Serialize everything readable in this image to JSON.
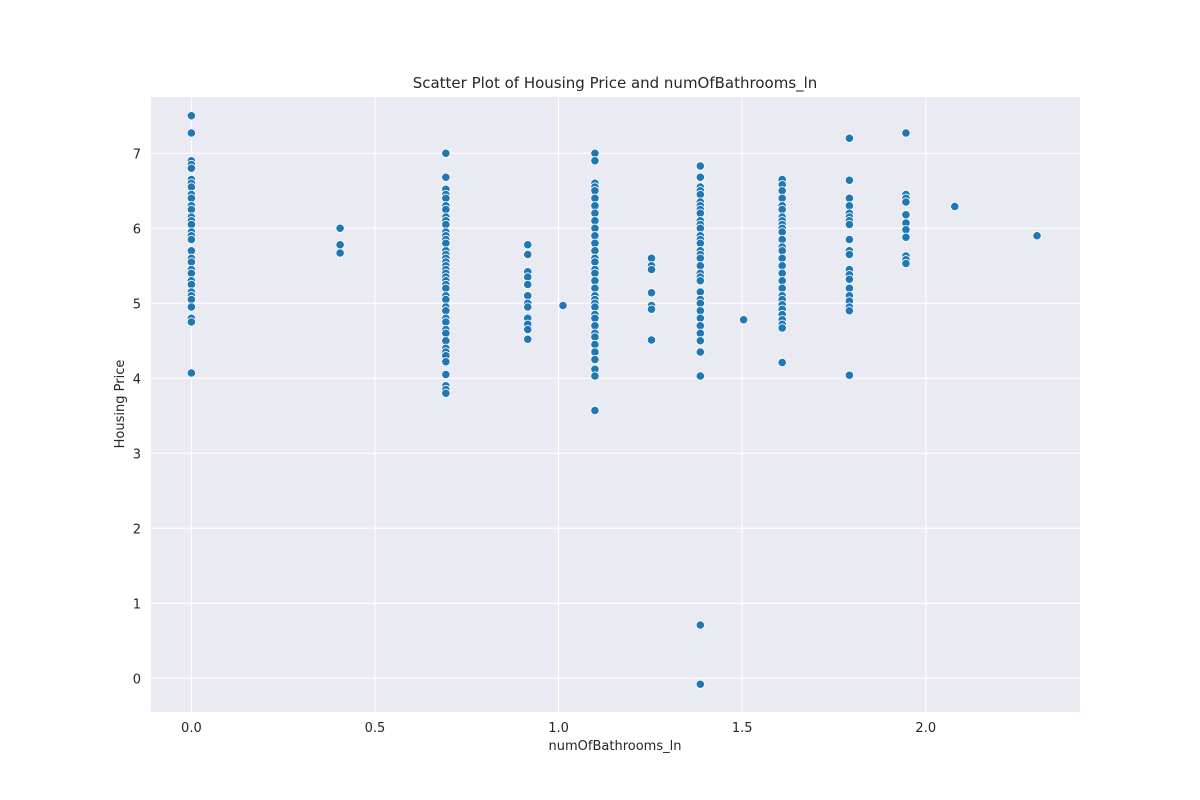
{
  "chart_data": {
    "type": "scatter",
    "title": "Scatter Plot of Housing Price and numOfBathrooms_ln",
    "xlabel": "numOfBathrooms_ln",
    "ylabel": "Housing Price",
    "xlim": [
      -0.11,
      2.42
    ],
    "ylim": [
      -0.45,
      7.75
    ],
    "x_ticks": [
      0.0,
      0.5,
      1.0,
      1.5,
      2.0
    ],
    "x_tick_labels": [
      "0.0",
      "0.5",
      "1.0",
      "1.5",
      "2.0"
    ],
    "y_ticks": [
      0,
      1,
      2,
      3,
      4,
      5,
      6,
      7
    ],
    "y_tick_labels": [
      "0",
      "1",
      "2",
      "3",
      "4",
      "5",
      "6",
      "7"
    ],
    "grid": true,
    "style": {
      "background": "#eaeaf2",
      "grid_color": "#ffffff",
      "point_color": "#1f77b4",
      "point_edge": "#ffffff"
    },
    "series": [
      {
        "points": [
          [
            0.0,
            7.5
          ],
          [
            0.0,
            7.27
          ],
          [
            0.0,
            6.9
          ],
          [
            0.0,
            6.85
          ],
          [
            0.0,
            6.8
          ],
          [
            0.0,
            6.65
          ],
          [
            0.0,
            6.6
          ],
          [
            0.0,
            6.55
          ],
          [
            0.0,
            6.45
          ],
          [
            0.0,
            6.4
          ],
          [
            0.0,
            6.3
          ],
          [
            0.0,
            6.25
          ],
          [
            0.0,
            6.15
          ],
          [
            0.0,
            6.1
          ],
          [
            0.0,
            6.05
          ],
          [
            0.0,
            5.95
          ],
          [
            0.0,
            5.9
          ],
          [
            0.0,
            5.85
          ],
          [
            0.0,
            5.7
          ],
          [
            0.0,
            5.6
          ],
          [
            0.0,
            5.55
          ],
          [
            0.0,
            5.45
          ],
          [
            0.0,
            5.4
          ],
          [
            0.0,
            5.3
          ],
          [
            0.0,
            5.25
          ],
          [
            0.0,
            5.15
          ],
          [
            0.0,
            5.1
          ],
          [
            0.0,
            5.05
          ],
          [
            0.0,
            4.95
          ],
          [
            0.0,
            4.8
          ],
          [
            0.0,
            4.75
          ],
          [
            0.0,
            4.07
          ],
          [
            0.405,
            6.0
          ],
          [
            0.405,
            5.78
          ],
          [
            0.405,
            5.67
          ],
          [
            0.693,
            7.0
          ],
          [
            0.693,
            6.68
          ],
          [
            0.693,
            6.52
          ],
          [
            0.693,
            6.45
          ],
          [
            0.693,
            6.4
          ],
          [
            0.693,
            6.3
          ],
          [
            0.693,
            6.25
          ],
          [
            0.693,
            6.15
          ],
          [
            0.693,
            6.1
          ],
          [
            0.693,
            6.05
          ],
          [
            0.693,
            5.95
          ],
          [
            0.693,
            5.9
          ],
          [
            0.693,
            5.85
          ],
          [
            0.693,
            5.8
          ],
          [
            0.693,
            5.7
          ],
          [
            0.693,
            5.65
          ],
          [
            0.693,
            5.6
          ],
          [
            0.693,
            5.55
          ],
          [
            0.693,
            5.5
          ],
          [
            0.693,
            5.45
          ],
          [
            0.693,
            5.4
          ],
          [
            0.693,
            5.35
          ],
          [
            0.693,
            5.3
          ],
          [
            0.693,
            5.25
          ],
          [
            0.693,
            5.2
          ],
          [
            0.693,
            5.1
          ],
          [
            0.693,
            5.05
          ],
          [
            0.693,
            4.95
          ],
          [
            0.693,
            4.9
          ],
          [
            0.693,
            4.8
          ],
          [
            0.693,
            4.75
          ],
          [
            0.693,
            4.65
          ],
          [
            0.693,
            4.6
          ],
          [
            0.693,
            4.5
          ],
          [
            0.693,
            4.4
          ],
          [
            0.693,
            4.35
          ],
          [
            0.693,
            4.3
          ],
          [
            0.693,
            4.22
          ],
          [
            0.693,
            4.05
          ],
          [
            0.693,
            3.9
          ],
          [
            0.693,
            3.85
          ],
          [
            0.693,
            3.8
          ],
          [
            0.916,
            5.78
          ],
          [
            0.916,
            5.65
          ],
          [
            0.916,
            5.42
          ],
          [
            0.916,
            5.35
          ],
          [
            0.916,
            5.25
          ],
          [
            0.916,
            5.1
          ],
          [
            0.916,
            5.0
          ],
          [
            0.916,
            4.95
          ],
          [
            0.916,
            4.8
          ],
          [
            0.916,
            4.72
          ],
          [
            0.916,
            4.65
          ],
          [
            0.916,
            4.52
          ],
          [
            1.012,
            4.97
          ],
          [
            1.099,
            7.0
          ],
          [
            1.099,
            6.9
          ],
          [
            1.099,
            6.6
          ],
          [
            1.099,
            6.55
          ],
          [
            1.099,
            6.5
          ],
          [
            1.099,
            6.4
          ],
          [
            1.099,
            6.3
          ],
          [
            1.099,
            6.2
          ],
          [
            1.099,
            6.1
          ],
          [
            1.099,
            6.0
          ],
          [
            1.099,
            5.9
          ],
          [
            1.099,
            5.8
          ],
          [
            1.099,
            5.7
          ],
          [
            1.099,
            5.6
          ],
          [
            1.099,
            5.55
          ],
          [
            1.099,
            5.45
          ],
          [
            1.099,
            5.4
          ],
          [
            1.099,
            5.3
          ],
          [
            1.099,
            5.2
          ],
          [
            1.099,
            5.1
          ],
          [
            1.099,
            5.05
          ],
          [
            1.099,
            5.0
          ],
          [
            1.099,
            4.95
          ],
          [
            1.099,
            4.85
          ],
          [
            1.099,
            4.8
          ],
          [
            1.099,
            4.7
          ],
          [
            1.099,
            4.6
          ],
          [
            1.099,
            4.55
          ],
          [
            1.099,
            4.45
          ],
          [
            1.099,
            4.35
          ],
          [
            1.099,
            4.25
          ],
          [
            1.099,
            4.12
          ],
          [
            1.099,
            4.03
          ],
          [
            1.099,
            3.57
          ],
          [
            1.253,
            5.6
          ],
          [
            1.253,
            5.5
          ],
          [
            1.253,
            5.45
          ],
          [
            1.253,
            5.14
          ],
          [
            1.253,
            4.97
          ],
          [
            1.253,
            4.92
          ],
          [
            1.253,
            4.51
          ],
          [
            1.386,
            6.83
          ],
          [
            1.386,
            6.68
          ],
          [
            1.386,
            6.55
          ],
          [
            1.386,
            6.5
          ],
          [
            1.386,
            6.45
          ],
          [
            1.386,
            6.35
          ],
          [
            1.386,
            6.3
          ],
          [
            1.386,
            6.25
          ],
          [
            1.386,
            6.2
          ],
          [
            1.386,
            6.1
          ],
          [
            1.386,
            6.05
          ],
          [
            1.386,
            6.0
          ],
          [
            1.386,
            5.9
          ],
          [
            1.386,
            5.85
          ],
          [
            1.386,
            5.8
          ],
          [
            1.386,
            5.7
          ],
          [
            1.386,
            5.65
          ],
          [
            1.386,
            5.6
          ],
          [
            1.386,
            5.5
          ],
          [
            1.386,
            5.4
          ],
          [
            1.386,
            5.35
          ],
          [
            1.386,
            5.3
          ],
          [
            1.386,
            5.15
          ],
          [
            1.386,
            5.05
          ],
          [
            1.386,
            5.0
          ],
          [
            1.386,
            4.9
          ],
          [
            1.386,
            4.8
          ],
          [
            1.386,
            4.7
          ],
          [
            1.386,
            4.6
          ],
          [
            1.386,
            4.5
          ],
          [
            1.386,
            4.35
          ],
          [
            1.386,
            4.03
          ],
          [
            1.386,
            0.71
          ],
          [
            1.386,
            -0.08
          ],
          [
            1.504,
            4.78
          ],
          [
            1.609,
            6.65
          ],
          [
            1.609,
            6.58
          ],
          [
            1.609,
            6.5
          ],
          [
            1.609,
            6.4
          ],
          [
            1.609,
            6.3
          ],
          [
            1.609,
            6.25
          ],
          [
            1.609,
            6.15
          ],
          [
            1.609,
            6.1
          ],
          [
            1.609,
            6.05
          ],
          [
            1.609,
            6.0
          ],
          [
            1.609,
            5.95
          ],
          [
            1.609,
            5.85
          ],
          [
            1.609,
            5.75
          ],
          [
            1.609,
            5.7
          ],
          [
            1.609,
            5.6
          ],
          [
            1.609,
            5.5
          ],
          [
            1.609,
            5.4
          ],
          [
            1.609,
            5.3
          ],
          [
            1.609,
            5.2
          ],
          [
            1.609,
            5.1
          ],
          [
            1.609,
            5.05
          ],
          [
            1.609,
            4.98
          ],
          [
            1.609,
            4.92
          ],
          [
            1.609,
            4.85
          ],
          [
            1.609,
            4.78
          ],
          [
            1.609,
            4.72
          ],
          [
            1.609,
            4.67
          ],
          [
            1.609,
            4.21
          ],
          [
            1.792,
            7.2
          ],
          [
            1.792,
            6.64
          ],
          [
            1.792,
            6.4
          ],
          [
            1.792,
            6.3
          ],
          [
            1.792,
            6.2
          ],
          [
            1.792,
            6.15
          ],
          [
            1.792,
            6.1
          ],
          [
            1.792,
            6.05
          ],
          [
            1.792,
            5.85
          ],
          [
            1.792,
            5.7
          ],
          [
            1.792,
            5.65
          ],
          [
            1.792,
            5.45
          ],
          [
            1.792,
            5.38
          ],
          [
            1.792,
            5.32
          ],
          [
            1.792,
            5.2
          ],
          [
            1.792,
            5.1
          ],
          [
            1.792,
            5.03
          ],
          [
            1.792,
            4.95
          ],
          [
            1.792,
            4.9
          ],
          [
            1.792,
            4.04
          ],
          [
            1.946,
            7.27
          ],
          [
            1.946,
            6.45
          ],
          [
            1.946,
            6.4
          ],
          [
            1.946,
            6.35
          ],
          [
            1.946,
            6.18
          ],
          [
            1.946,
            6.07
          ],
          [
            1.946,
            5.98
          ],
          [
            1.946,
            5.88
          ],
          [
            1.946,
            5.63
          ],
          [
            1.946,
            5.58
          ],
          [
            1.946,
            5.53
          ],
          [
            2.079,
            6.29
          ],
          [
            2.303,
            5.9
          ]
        ]
      }
    ]
  }
}
